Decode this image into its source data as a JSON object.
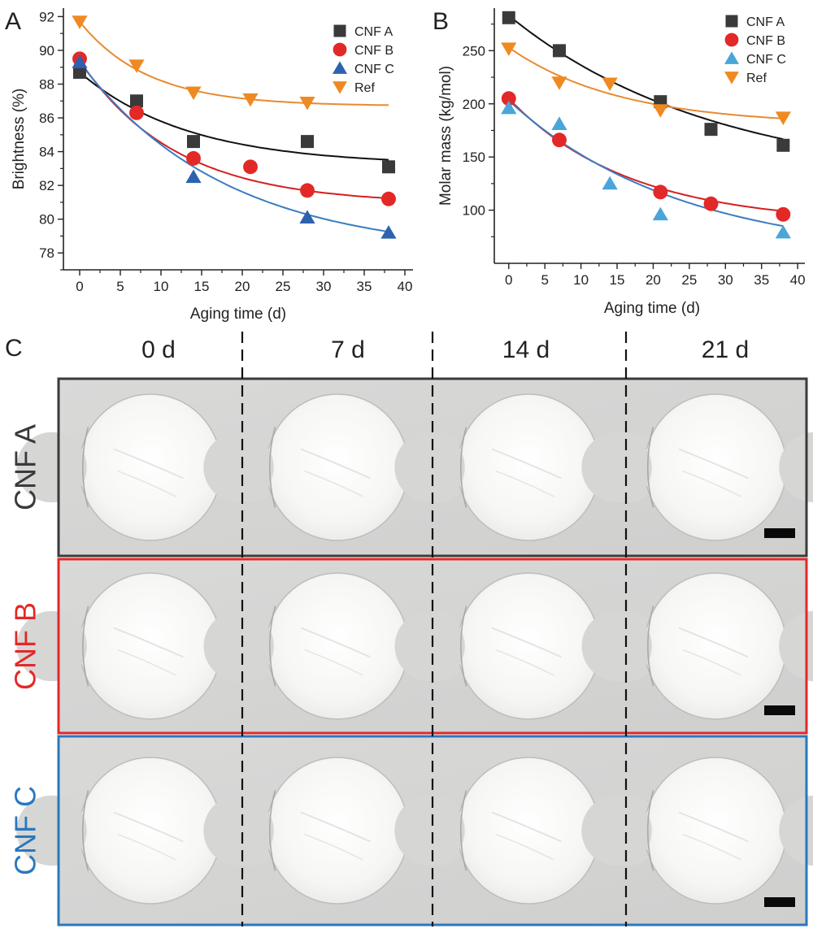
{
  "panels": {
    "a": "A",
    "b": "B",
    "c": "C"
  },
  "colors": {
    "cnf_a": "#3a3a3a",
    "cnf_b": "#e32828",
    "cnf_c_chart_a": "#2e62ae",
    "cnf_c_chart_b": "#4aa6d9",
    "ref": "#ef8a22",
    "fit_a": "#111111",
    "fit_b": "#d42020",
    "fit_c": "#3a7cc2",
    "fit_ref": "#e88a30",
    "box_a": "#3a3a3a",
    "box_b": "#e32828",
    "box_c": "#2878be"
  },
  "chart_data": [
    {
      "type": "scatter",
      "title": "",
      "xlabel": "Aging time (d)",
      "ylabel": "Brightness (%)",
      "xlim": [
        -2,
        41
      ],
      "ylim": [
        77,
        92.5
      ],
      "xticks": [
        0,
        5,
        10,
        15,
        20,
        25,
        30,
        35,
        40
      ],
      "yticks": [
        78,
        80,
        82,
        84,
        86,
        88,
        90,
        92
      ],
      "legend_position": "top-right",
      "series": [
        {
          "name": "CNF A",
          "marker": "square",
          "color_key": "cnf_a",
          "fit_color_key": "fit_a",
          "x": [
            0,
            7,
            14,
            28,
            38
          ],
          "y": [
            88.7,
            87.0,
            84.6,
            84.6,
            83.1
          ],
          "fit": {
            "a": 83.2,
            "b": 5.5,
            "k": 0.075
          }
        },
        {
          "name": "CNF B",
          "marker": "circle",
          "color_key": "cnf_b",
          "fit_color_key": "fit_b",
          "x": [
            0,
            7,
            14,
            21,
            28,
            38
          ],
          "y": [
            89.5,
            86.3,
            83.6,
            83.1,
            81.7,
            81.2
          ],
          "fit": {
            "a": 80.9,
            "b": 8.5,
            "k": 0.085
          }
        },
        {
          "name": "CNF C",
          "marker": "triangle-up",
          "color_key": "cnf_c_chart_a",
          "fit_color_key": "fit_c",
          "x": [
            0,
            14,
            28,
            38
          ],
          "y": [
            89.3,
            82.5,
            80.1,
            79.2
          ],
          "fit": {
            "a": 77.9,
            "b": 11.4,
            "k": 0.056
          }
        },
        {
          "name": "Ref",
          "marker": "triangle-down",
          "color_key": "ref",
          "fit_color_key": "fit_ref",
          "x": [
            0,
            7,
            14,
            21,
            28
          ],
          "y": [
            91.7,
            89.1,
            87.5,
            87.1,
            86.9
          ],
          "fit": {
            "a": 86.7,
            "b": 5.0,
            "k": 0.12
          }
        }
      ]
    },
    {
      "type": "scatter",
      "title": "",
      "xlabel": "Aging time (d)",
      "ylabel": "Molar mass (kg/mol)",
      "xlim": [
        -2,
        41
      ],
      "ylim": [
        50,
        290
      ],
      "xticks": [
        0,
        5,
        10,
        15,
        20,
        25,
        30,
        35,
        40
      ],
      "yticks": [
        100,
        150,
        200,
        250
      ],
      "legend_position": "top-right",
      "series": [
        {
          "name": "CNF A",
          "marker": "square",
          "color_key": "cnf_a",
          "fit_color_key": "fit_a",
          "x": [
            0,
            7,
            21,
            28,
            38
          ],
          "y": [
            281,
            250,
            202,
            176,
            161
          ],
          "fit": {
            "a": 125,
            "b": 158,
            "k": 0.035
          }
        },
        {
          "name": "CNF B",
          "marker": "circle",
          "color_key": "cnf_b",
          "fit_color_key": "fit_b",
          "x": [
            0,
            7,
            21,
            28,
            38
          ],
          "y": [
            205,
            166,
            117,
            106,
            96
          ],
          "fit": {
            "a": 87,
            "b": 118,
            "k": 0.06
          }
        },
        {
          "name": "CNF C",
          "marker": "triangle-up",
          "color_key": "cnf_c_chart_b",
          "fit_color_key": "fit_c",
          "x": [
            0,
            7,
            14,
            21,
            38
          ],
          "y": [
            196,
            181,
            125,
            96,
            79
          ],
          "fit": {
            "a": 55,
            "b": 148,
            "k": 0.042
          }
        },
        {
          "name": "Ref",
          "marker": "triangle-down",
          "color_key": "ref",
          "fit_color_key": "fit_ref",
          "x": [
            0,
            7,
            14,
            21,
            38
          ],
          "y": [
            252,
            220,
            219,
            194,
            187
          ],
          "fit": {
            "a": 180,
            "b": 73,
            "k": 0.065
          }
        }
      ]
    }
  ],
  "photos": {
    "columns": [
      "0 d",
      "7 d",
      "14 d",
      "21 d"
    ],
    "rows": [
      {
        "label": "CNF A",
        "color_key": "box_a"
      },
      {
        "label": "CNF B",
        "color_key": "box_b"
      },
      {
        "label": "CNF C",
        "color_key": "box_c"
      }
    ]
  }
}
